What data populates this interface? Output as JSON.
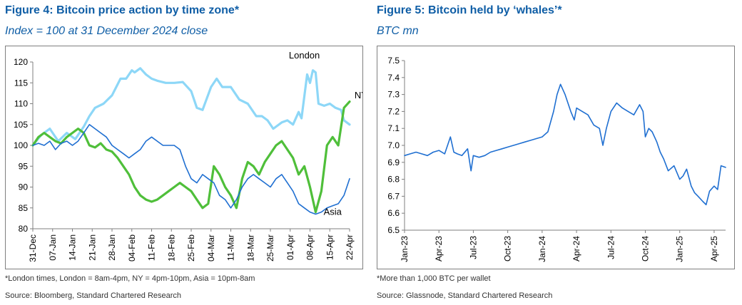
{
  "figure4": {
    "title": "Figure 4: Bitcoin price action by time zone*",
    "subtitle": "Index = 100 at 31 December 2024 close",
    "footnote": "*London times, London = 8am-4pm, NY = 4pm-10pm, Asia = 10pm-8am",
    "source": "Source: Bloomberg, Standard Chartered Research"
  },
  "figure5": {
    "title": "Figure 5: Bitcoin held by ‘whales’*",
    "subtitle": "BTC mn",
    "footnote": "*More than 1,000 BTC per wallet",
    "source": "Source: Glassnode, Standard Chartered Research"
  },
  "chart_data": [
    {
      "type": "line",
      "title": "Figure 4: Bitcoin price action by time zone*",
      "subtitle": "Index = 100 at 31 December 2024 close",
      "ylim": [
        80,
        120
      ],
      "yticks": [
        80,
        85,
        90,
        95,
        100,
        105,
        110,
        115,
        120
      ],
      "xlim": [
        0,
        112
      ],
      "xticks": [
        {
          "x": 0,
          "label": "31-Dec"
        },
        {
          "x": 7,
          "label": "07-Jan"
        },
        {
          "x": 14,
          "label": "14-Jan"
        },
        {
          "x": 21,
          "label": "21-Jan"
        },
        {
          "x": 28,
          "label": "28-Jan"
        },
        {
          "x": 35,
          "label": "04-Feb"
        },
        {
          "x": 42,
          "label": "11-Feb"
        },
        {
          "x": 49,
          "label": "18-Feb"
        },
        {
          "x": 56,
          "label": "25-Feb"
        },
        {
          "x": 63,
          "label": "04-Mar"
        },
        {
          "x": 70,
          "label": "11-Mar"
        },
        {
          "x": 77,
          "label": "18-Mar"
        },
        {
          "x": 84,
          "label": "25-Mar"
        },
        {
          "x": 91,
          "label": "01-Apr"
        },
        {
          "x": 98,
          "label": "08-Apr"
        },
        {
          "x": 105,
          "label": "15-Apr"
        },
        {
          "x": 112,
          "label": "22-Apr"
        }
      ],
      "grid": false,
      "series": [
        {
          "name": "London",
          "color": "#8dd7f7",
          "label_x": 96,
          "label_y": 121.5,
          "x": [
            0,
            3,
            6,
            9,
            12,
            15,
            18,
            20,
            22,
            25,
            28,
            31,
            33,
            35,
            36,
            38,
            40,
            42,
            44,
            47,
            50,
            53,
            56,
            58,
            60,
            63,
            65,
            67,
            70,
            73,
            76,
            79,
            81,
            83,
            85,
            88,
            90,
            92,
            94,
            95,
            97,
            98,
            99,
            100,
            101,
            103,
            105,
            107,
            109,
            110,
            111,
            112
          ],
          "values": [
            100,
            102.5,
            104,
            101,
            103,
            101.5,
            104.5,
            107,
            109,
            110,
            112,
            116,
            116,
            118,
            117.5,
            118.5,
            117,
            116,
            115.5,
            115,
            115,
            115.2,
            113,
            109,
            108.5,
            114,
            116,
            114,
            114,
            111,
            110,
            107,
            107,
            106,
            104,
            105.5,
            106,
            105,
            108,
            106.5,
            117,
            115,
            118,
            117.5,
            110,
            109.5,
            110,
            109,
            108.5,
            106,
            105.5,
            105
          ]
        },
        {
          "name": "NY",
          "color": "#4fbf3a",
          "label_x": 116,
          "label_y": 112,
          "x": [
            0,
            2,
            4,
            6,
            8,
            10,
            12,
            14,
            16,
            18,
            20,
            22,
            24,
            26,
            28,
            30,
            32,
            34,
            36,
            38,
            40,
            42,
            44,
            46,
            48,
            50,
            52,
            54,
            56,
            58,
            60,
            62,
            64,
            66,
            68,
            70,
            72,
            74,
            76,
            78,
            80,
            82,
            84,
            86,
            88,
            90,
            92,
            94,
            96,
            98,
            100,
            102,
            104,
            106,
            108,
            110,
            112
          ],
          "values": [
            100,
            102,
            103,
            102,
            101,
            100.5,
            102,
            103,
            104,
            103,
            100,
            99.5,
            100.5,
            99,
            98.5,
            97,
            95,
            93,
            90,
            88,
            87,
            86.5,
            87,
            88,
            89,
            90,
            91,
            90,
            89,
            87,
            85,
            86,
            95,
            93,
            90,
            88,
            85,
            92,
            96,
            95,
            93,
            96,
            98,
            100,
            101,
            99,
            97,
            93,
            95,
            90,
            84,
            89,
            100,
            102,
            100,
            109,
            110.5
          ]
        },
        {
          "name": "Asia",
          "color": "#1f6fd1",
          "label_x": 106,
          "label_y": 84,
          "x": [
            0,
            2,
            4,
            6,
            8,
            10,
            12,
            14,
            16,
            18,
            20,
            22,
            24,
            26,
            28,
            30,
            32,
            34,
            36,
            38,
            40,
            42,
            44,
            46,
            48,
            50,
            52,
            54,
            56,
            58,
            60,
            62,
            64,
            66,
            68,
            70,
            72,
            74,
            76,
            78,
            80,
            82,
            84,
            86,
            88,
            90,
            92,
            94,
            96,
            98,
            100,
            102,
            104,
            106,
            108,
            110,
            112
          ],
          "values": [
            100,
            100.5,
            100,
            101,
            99,
            100.5,
            101,
            100,
            101,
            103,
            105,
            104,
            103,
            102,
            100,
            99,
            98,
            97,
            98,
            99,
            101,
            102,
            101,
            100,
            100,
            100,
            99,
            95,
            92,
            91,
            93,
            92,
            91,
            88,
            87,
            85,
            87,
            90,
            92,
            93,
            92,
            91,
            90,
            92,
            93,
            91,
            89,
            86,
            85,
            84,
            83.5,
            84,
            85,
            85.5,
            86,
            88,
            92
          ]
        }
      ]
    },
    {
      "type": "line",
      "title": "Figure 5: Bitcoin held by ‘whales’*",
      "subtitle": "BTC mn",
      "ylim": [
        6.5,
        7.5
      ],
      "yticks": [
        6.5,
        6.6,
        6.7,
        6.8,
        6.9,
        7.0,
        7.1,
        7.2,
        7.3,
        7.4,
        7.5
      ],
      "xlim": [
        0,
        28
      ],
      "xticks": [
        {
          "x": 0,
          "label": "Jan-23"
        },
        {
          "x": 3,
          "label": "Apr-23"
        },
        {
          "x": 6,
          "label": "Jul-23"
        },
        {
          "x": 9,
          "label": "Oct-23"
        },
        {
          "x": 12,
          "label": "Jan-24"
        },
        {
          "x": 15,
          "label": "Apr-24"
        },
        {
          "x": 18,
          "label": "Jul-24"
        },
        {
          "x": 21,
          "label": "Oct-24"
        },
        {
          "x": 24,
          "label": "Jan-25"
        },
        {
          "x": 27,
          "label": "Apr-25"
        }
      ],
      "grid": false,
      "series": [
        {
          "color": "#1f6fd1",
          "x": [
            0,
            0.5,
            1,
            1.5,
            2,
            2.5,
            3,
            3.5,
            4,
            4.3,
            4.6,
            5,
            5.5,
            5.8,
            6,
            6.5,
            7,
            7.5,
            8,
            8.5,
            9,
            9.5,
            10,
            10.5,
            11,
            11.5,
            12,
            12.5,
            13,
            13.3,
            13.6,
            14,
            14.5,
            14.8,
            15,
            15.5,
            16,
            16.5,
            17,
            17.3,
            17.6,
            18,
            18.5,
            19,
            19.5,
            20,
            20.5,
            20.8,
            21,
            21.3,
            21.6,
            22,
            22.3,
            22.6,
            23,
            23.5,
            24,
            24.3,
            24.6,
            25,
            25.3,
            25.6,
            26,
            26.3,
            26.6,
            27,
            27.3,
            27.6,
            28
          ],
          "values": [
            6.94,
            6.95,
            6.96,
            6.95,
            6.94,
            6.96,
            6.97,
            6.95,
            7.05,
            6.96,
            6.95,
            6.94,
            6.98,
            6.85,
            6.94,
            6.93,
            6.94,
            6.96,
            6.97,
            6.98,
            6.99,
            7.0,
            7.01,
            7.02,
            7.03,
            7.04,
            7.05,
            7.08,
            7.2,
            7.3,
            7.36,
            7.3,
            7.2,
            7.15,
            7.22,
            7.2,
            7.18,
            7.12,
            7.1,
            7.0,
            7.1,
            7.2,
            7.25,
            7.22,
            7.2,
            7.18,
            7.24,
            7.2,
            7.05,
            7.1,
            7.08,
            7.02,
            6.96,
            6.92,
            6.85,
            6.88,
            6.8,
            6.82,
            6.86,
            6.76,
            6.72,
            6.7,
            6.67,
            6.65,
            6.73,
            6.76,
            6.74,
            6.88,
            6.87
          ]
        }
      ]
    }
  ]
}
